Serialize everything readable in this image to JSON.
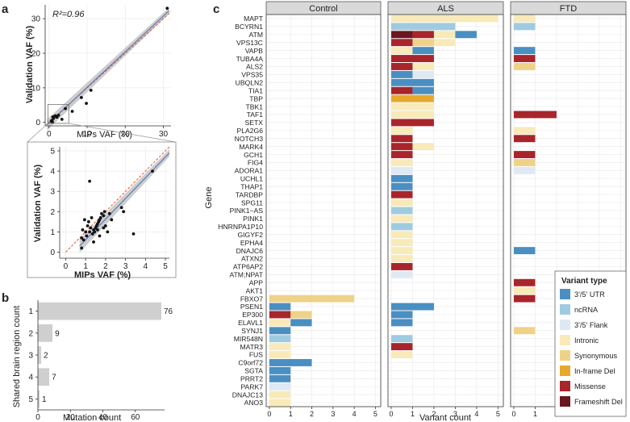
{
  "colors": {
    "UTR": "#4a8fc2",
    "ncRNA": "#9fcbe0",
    "Flank": "#dfe9f3",
    "Intronic": "#f8eab9",
    "Synonymous": "#efd287",
    "Inframe": "#e7a82c",
    "Missense": "#a8252b",
    "Frameshift": "#6b1720",
    "scatter_ci": "#c4c4c4",
    "fit_line": "#4a6fb5",
    "identity_line": "#e0532c",
    "bar_b": "#cfcfcf",
    "strip_bg": "#d9d9d9"
  },
  "panels": {
    "a": "a",
    "b": "b",
    "c": "c"
  },
  "chart_data": [
    {
      "id": "a_top",
      "type": "scatter",
      "title": "",
      "annotation": "R²=0.96",
      "xlabel": "MIPs VAF (%)",
      "ylabel": "Validation VAF (%)",
      "xlim": [
        -1,
        32
      ],
      "ylim": [
        -1,
        34
      ],
      "xticks": [
        0,
        10,
        20,
        30
      ],
      "yticks": [
        0,
        10,
        20,
        30
      ],
      "points": [
        [
          31,
          33
        ],
        [
          11,
          9.3
        ],
        [
          8.5,
          7.2
        ],
        [
          9.8,
          5.5
        ],
        [
          6.1,
          3.2
        ],
        [
          4.3,
          4.0
        ],
        [
          2.1,
          1.5
        ],
        [
          1.2,
          1.2
        ],
        [
          0.8,
          0.6
        ],
        [
          1.5,
          1.8
        ],
        [
          0.6,
          0.4
        ],
        [
          1.7,
          1.9
        ],
        [
          2.5,
          2.1
        ],
        [
          1.0,
          1.6
        ],
        [
          3.4,
          0.9
        ],
        [
          0.9,
          0.1
        ]
      ],
      "fit": [
        [
          -0.5,
          -0.7
        ],
        [
          31.5,
          32.3
        ]
      ],
      "identity": [
        [
          -1,
          -1
        ],
        [
          32,
          32
        ]
      ]
    },
    {
      "id": "a_zoom",
      "type": "scatter",
      "title": "",
      "xlabel": "MIPs VAF (%)",
      "ylabel": "Validation VAF (%)",
      "xlim": [
        -0.3,
        5.2
      ],
      "ylim": [
        -0.3,
        5.2
      ],
      "xticks": [
        0,
        1,
        2,
        3,
        4,
        5
      ],
      "yticks": [
        0,
        1,
        2,
        3,
        4,
        5
      ],
      "points": [
        [
          4.35,
          4.0
        ],
        [
          3.4,
          0.9
        ],
        [
          2.9,
          2.0
        ],
        [
          2.8,
          2.2
        ],
        [
          2.3,
          1.6
        ],
        [
          2.2,
          1.9
        ],
        [
          2.1,
          1.0
        ],
        [
          1.95,
          2.0
        ],
        [
          1.9,
          1.8
        ],
        [
          1.8,
          1.9
        ],
        [
          1.75,
          1.7
        ],
        [
          1.7,
          1.6
        ],
        [
          1.65,
          1.5
        ],
        [
          1.6,
          1.4
        ],
        [
          1.55,
          1.3
        ],
        [
          1.5,
          1.2
        ],
        [
          1.45,
          1.0
        ],
        [
          1.4,
          1.1
        ],
        [
          1.35,
          0.9
        ],
        [
          1.3,
          1.7
        ],
        [
          1.25,
          1.2
        ],
        [
          1.2,
          3.5
        ],
        [
          1.15,
          1.5
        ],
        [
          1.1,
          1.3
        ],
        [
          1.05,
          0.8
        ],
        [
          1.0,
          1.0
        ],
        [
          0.95,
          1.6
        ],
        [
          0.9,
          0.6
        ],
        [
          0.85,
          1.1
        ],
        [
          0.8,
          0.2
        ],
        [
          0.8,
          0.7
        ],
        [
          1.2,
          1.0
        ],
        [
          1.4,
          0.5
        ],
        [
          1.7,
          0.8
        ],
        [
          2.0,
          1.3
        ],
        [
          1.6,
          1.1
        ],
        [
          1.9,
          1.2
        ]
      ],
      "fit": [
        [
          0.7,
          0.3
        ],
        [
          5.2,
          4.9
        ]
      ],
      "identity": [
        [
          0,
          0
        ],
        [
          5.2,
          5.2
        ]
      ]
    },
    {
      "id": "b",
      "type": "bar",
      "orientation": "horizontal",
      "xlabel": "Mutation count",
      "ylabel": "Shared brain region count",
      "categories": [
        "1",
        "2",
        "3",
        "4",
        "5"
      ],
      "values": [
        76,
        9,
        2,
        7,
        1
      ],
      "xlim": [
        0,
        78
      ],
      "xticks": [
        0,
        20,
        40,
        60
      ]
    },
    {
      "id": "c",
      "type": "bar",
      "stacked": true,
      "orientation": "horizontal",
      "xlabel": "Variant count",
      "ylabel": "Gene",
      "xticks": [
        0,
        1,
        2,
        3,
        4,
        5
      ],
      "xlim": [
        -0.15,
        5.25
      ],
      "facets": [
        "Control",
        "ALS",
        "FTD"
      ],
      "legend_title": "Variant type",
      "legend": [
        {
          "key": "UTR",
          "label": "3'/5' UTR"
        },
        {
          "key": "ncRNA",
          "label": "ncRNA"
        },
        {
          "key": "Flank",
          "label": "3'/5' Flank"
        },
        {
          "key": "Intronic",
          "label": "Intronic"
        },
        {
          "key": "Synonymous",
          "label": "Synonymous"
        },
        {
          "key": "Inframe",
          "label": "In-frame Del"
        },
        {
          "key": "Missense",
          "label": "Missense"
        },
        {
          "key": "Frameshift",
          "label": "Frameshift Del"
        }
      ],
      "genes": [
        "MAPT",
        "BCYRN1",
        "ATM",
        "VPS13C",
        "VAPB",
        "TUBA4A",
        "ALS2",
        "VPS35",
        "UBQLN2",
        "TIA1",
        "TBP",
        "TBK1",
        "TAF1",
        "SETX",
        "PLA2G6",
        "NOTCH3",
        "MARK4",
        "GCH1",
        "FIG4",
        "ADORA1",
        "UCHL1",
        "THAP1",
        "TARDBP",
        "SPG11",
        "PINK1−AS",
        "PINK1",
        "HNRNPA1P10",
        "GIGYF2",
        "EPHA4",
        "DNAJC6",
        "ATXN2",
        "ATP6AP2",
        "ATM;NPAT",
        "APP",
        "AKT1",
        "FBXO7",
        "PSEN1",
        "EP300",
        "ELAVL1",
        "SYNJ1",
        "MIR548N",
        "MATR3",
        "FUS",
        "C9orf72",
        "SGTA",
        "PRRT2",
        "PARK7",
        "DNAJC13",
        "ANO3"
      ],
      "series": {
        "Control": [
          {
            "gene": "FBXO7",
            "segs": [
              [
                "Synonymous",
                4
              ]
            ]
          },
          {
            "gene": "PSEN1",
            "segs": [
              [
                "UTR",
                1
              ]
            ]
          },
          {
            "gene": "EP300",
            "segs": [
              [
                "Missense",
                1
              ],
              [
                "Synonymous",
                1
              ]
            ]
          },
          {
            "gene": "ELAVL1",
            "segs": [
              [
                "Intronic",
                1
              ],
              [
                "UTR",
                1
              ]
            ]
          },
          {
            "gene": "SYNJ1",
            "segs": [
              [
                "UTR",
                1
              ]
            ]
          },
          {
            "gene": "MIR548N",
            "segs": [
              [
                "ncRNA",
                1
              ]
            ]
          },
          {
            "gene": "MATR3",
            "segs": [
              [
                "Intronic",
                1
              ]
            ]
          },
          {
            "gene": "FUS",
            "segs": [
              [
                "Intronic",
                1
              ]
            ]
          },
          {
            "gene": "C9orf72",
            "segs": [
              [
                "UTR",
                2
              ]
            ]
          },
          {
            "gene": "SGTA",
            "segs": [
              [
                "UTR",
                1
              ]
            ]
          },
          {
            "gene": "PRRT2",
            "segs": [
              [
                "UTR",
                1
              ]
            ]
          },
          {
            "gene": "PARK7",
            "segs": [
              [
                "Flank",
                1
              ]
            ]
          },
          {
            "gene": "DNAJC13",
            "segs": [
              [
                "Intronic",
                1
              ]
            ]
          },
          {
            "gene": "ANO3",
            "segs": [
              [
                "Intronic",
                1
              ]
            ]
          }
        ],
        "ALS": [
          {
            "gene": "MAPT",
            "segs": [
              [
                "Intronic",
                5
              ]
            ]
          },
          {
            "gene": "BCYRN1",
            "segs": [
              [
                "ncRNA",
                3
              ]
            ]
          },
          {
            "gene": "ATM",
            "segs": [
              [
                "Frameshift",
                1
              ],
              [
                "Missense",
                1
              ],
              [
                "Intronic",
                1
              ],
              [
                "UTR",
                1
              ]
            ]
          },
          {
            "gene": "VPS13C",
            "segs": [
              [
                "Missense",
                1
              ],
              [
                "Synonymous",
                1
              ],
              [
                "Intronic",
                1
              ]
            ]
          },
          {
            "gene": "VAPB",
            "segs": [
              [
                "Intronic",
                1
              ],
              [
                "UTR",
                1
              ]
            ]
          },
          {
            "gene": "TUBA4A",
            "segs": [
              [
                "Missense",
                2
              ]
            ]
          },
          {
            "gene": "ALS2",
            "segs": [
              [
                "Missense",
                1
              ],
              [
                "Intronic",
                1
              ]
            ]
          },
          {
            "gene": "VPS35",
            "segs": [
              [
                "UTR",
                1
              ],
              [
                "Flank",
                1
              ]
            ]
          },
          {
            "gene": "UBQLN2",
            "segs": [
              [
                "UTR",
                2
              ]
            ]
          },
          {
            "gene": "TIA1",
            "segs": [
              [
                "Missense",
                1
              ],
              [
                "UTR",
                1
              ]
            ]
          },
          {
            "gene": "TBP",
            "segs": [
              [
                "Inframe",
                2
              ]
            ]
          },
          {
            "gene": "TBK1",
            "segs": [
              [
                "Intronic",
                2
              ]
            ]
          },
          {
            "gene": "TAF1",
            "segs": [
              [
                "Intronic",
                2
              ]
            ]
          },
          {
            "gene": "SETX",
            "segs": [
              [
                "Missense",
                2
              ]
            ]
          },
          {
            "gene": "PLA2G6",
            "segs": [
              [
                "Intronic",
                1
              ]
            ]
          },
          {
            "gene": "NOTCH3",
            "segs": [
              [
                "Missense",
                1
              ]
            ]
          },
          {
            "gene": "MARK4",
            "segs": [
              [
                "Missense",
                1
              ],
              [
                "Intronic",
                1
              ]
            ]
          },
          {
            "gene": "GCH1",
            "segs": [
              [
                "Missense",
                1
              ]
            ]
          },
          {
            "gene": "FIG4",
            "segs": [
              [
                "Intronic",
                1
              ]
            ]
          },
          {
            "gene": "ADORA1",
            "segs": [
              [
                "Flank",
                1
              ]
            ]
          },
          {
            "gene": "UCHL1",
            "segs": [
              [
                "UTR",
                1
              ]
            ]
          },
          {
            "gene": "THAP1",
            "segs": [
              [
                "UTR",
                1
              ]
            ]
          },
          {
            "gene": "TARDBP",
            "segs": [
              [
                "Missense",
                1
              ]
            ]
          },
          {
            "gene": "SPG11",
            "segs": [
              [
                "Intronic",
                1
              ]
            ]
          },
          {
            "gene": "PINK1−AS",
            "segs": [
              [
                "ncRNA",
                1
              ]
            ]
          },
          {
            "gene": "PINK1",
            "segs": [
              [
                "Intronic",
                1
              ]
            ]
          },
          {
            "gene": "HNRNPA1P10",
            "segs": [
              [
                "ncRNA",
                1
              ]
            ]
          },
          {
            "gene": "GIGYF2",
            "segs": [
              [
                "Intronic",
                1
              ]
            ]
          },
          {
            "gene": "EPHA4",
            "segs": [
              [
                "Intronic",
                1
              ]
            ]
          },
          {
            "gene": "DNAJC6",
            "segs": [
              [
                "Intronic",
                1
              ]
            ]
          },
          {
            "gene": "ATXN2",
            "segs": [
              [
                "Intronic",
                1
              ]
            ]
          },
          {
            "gene": "ATP6AP2",
            "segs": [
              [
                "Missense",
                1
              ]
            ]
          },
          {
            "gene": "ATM;NPAT",
            "segs": [
              [
                "Flank",
                1
              ]
            ]
          },
          {
            "gene": "PSEN1",
            "segs": [
              [
                "UTR",
                2
              ]
            ]
          },
          {
            "gene": "EP300",
            "segs": [
              [
                "UTR",
                1
              ]
            ]
          },
          {
            "gene": "ELAVL1",
            "segs": [
              [
                "UTR",
                1
              ]
            ]
          },
          {
            "gene": "MIR548N",
            "segs": [
              [
                "ncRNA",
                1
              ]
            ]
          },
          {
            "gene": "MATR3",
            "segs": [
              [
                "Missense",
                1
              ]
            ]
          },
          {
            "gene": "FUS",
            "segs": [
              [
                "Intronic",
                1
              ]
            ]
          }
        ],
        "FTD": [
          {
            "gene": "MAPT",
            "segs": [
              [
                "Intronic",
                1
              ]
            ]
          },
          {
            "gene": "BCYRN1",
            "segs": [
              [
                "ncRNA",
                1
              ]
            ]
          },
          {
            "gene": "VAPB",
            "segs": [
              [
                "UTR",
                1
              ]
            ]
          },
          {
            "gene": "TUBA4A",
            "segs": [
              [
                "Missense",
                1
              ]
            ]
          },
          {
            "gene": "ALS2",
            "segs": [
              [
                "Synonymous",
                1
              ]
            ]
          },
          {
            "gene": "TAF1",
            "segs": [
              [
                "Missense",
                2
              ]
            ]
          },
          {
            "gene": "PLA2G6",
            "segs": [
              [
                "Intronic",
                1
              ]
            ]
          },
          {
            "gene": "NOTCH3",
            "segs": [
              [
                "Missense",
                1
              ]
            ]
          },
          {
            "gene": "GCH1",
            "segs": [
              [
                "Missense",
                1
              ]
            ]
          },
          {
            "gene": "FIG4",
            "segs": [
              [
                "Synonymous",
                1
              ]
            ]
          },
          {
            "gene": "ADORA1",
            "segs": [
              [
                "Flank",
                1
              ]
            ]
          },
          {
            "gene": "DNAJC6",
            "segs": [
              [
                "UTR",
                1
              ]
            ]
          },
          {
            "gene": "APP",
            "segs": [
              [
                "Missense",
                1
              ]
            ]
          },
          {
            "gene": "AKT1",
            "segs": [
              [
                "Intronic",
                1
              ]
            ]
          },
          {
            "gene": "FBXO7",
            "segs": [
              [
                "Missense",
                1
              ]
            ]
          },
          {
            "gene": "SYNJ1",
            "segs": [
              [
                "Synonymous",
                1
              ]
            ]
          }
        ]
      }
    }
  ]
}
